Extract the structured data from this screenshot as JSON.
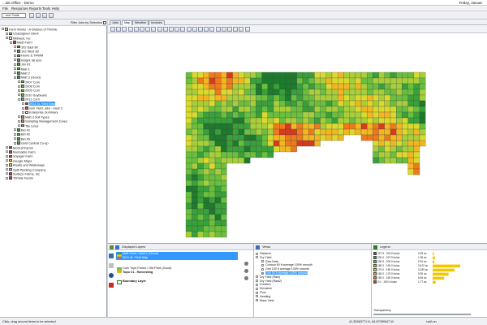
{
  "window": {
    "title": "...Ids Office - Demo",
    "right_info": "Friday, Januar"
  },
  "menu": [
    "File",
    "Resources",
    "Reports",
    "Tools",
    "Help"
  ],
  "toolbar": {
    "combo_value": "...mer Tools"
  },
  "left_panel": {
    "filter_label": "Filter Jobs by Selection",
    "tree": [
      {
        "label": "Farm Works - A Division of Trimble",
        "indent": 0,
        "icon": "folder-icon",
        "color": "#e8c35a"
      },
      {
        "label": "Unassigned Client",
        "indent": 1,
        "icon": "folder-icon",
        "color": "#e8c35a"
      },
      {
        "label": "Midwest, Inc",
        "indent": 1,
        "icon": "client-icon",
        "color": "#ffffff"
      },
      {
        "label": "Mast Farm",
        "indent": 2,
        "icon": "farm-icon",
        "color": "#b33b2e"
      },
      {
        "label": "102 East 80",
        "indent": 3,
        "icon": "field-icon",
        "color": "#4f9a3d"
      },
      {
        "label": "102 West 80",
        "indent": 3,
        "icon": "field-icon",
        "color": "#4f9a3d"
      },
      {
        "label": "Home & THWM",
        "indent": 3,
        "icon": "field-icon",
        "color": "#4f9a3d"
      },
      {
        "label": "Insight 38 acre",
        "indent": 3,
        "icon": "field-icon",
        "color": "#4f9a3d"
      },
      {
        "label": "Jim #1",
        "indent": 3,
        "icon": "field-icon",
        "color": "#4f9a3d"
      },
      {
        "label": "Matt 1",
        "indent": 3,
        "icon": "field-icon",
        "color": "#4f9a3d"
      },
      {
        "label": "Matt 2",
        "indent": 3,
        "icon": "field-icon",
        "color": "#4f9a3d"
      },
      {
        "label": "Matt 3 (Good)",
        "indent": 3,
        "icon": "field-icon",
        "color": "#4f9a3d"
      },
      {
        "label": "2007 Corn",
        "indent": 4,
        "icon": "season-icon",
        "color": "#7cb342"
      },
      {
        "label": "2008 Corn",
        "indent": 4,
        "icon": "season-icon",
        "color": "#7cb342"
      },
      {
        "label": "2009 Corn",
        "indent": 4,
        "icon": "season-icon",
        "color": "#7cb342"
      },
      {
        "label": "2010 Soybeans",
        "indent": 4,
        "icon": "season-icon",
        "color": "#7cb342"
      },
      {
        "label": "2011 Corn",
        "indent": 4,
        "icon": "season-icon",
        "color": "#7cb342"
      },
      {
        "label": "2011 AL Yield Map",
        "indent": 5,
        "icon": "map-icon",
        "color": "#d84a3a"
      },
      {
        "label": "ssm Yield, a&b - mast 3",
        "indent": 5,
        "icon": "map-icon",
        "color": "#d84a3a"
      },
      {
        "label": "Enterprise Summary",
        "indent": 5,
        "icon": "report-icon",
        "color": "#f2f2f2"
      },
      {
        "label": "Matt 3 Soil Types",
        "indent": 4,
        "icon": "layer-icon",
        "color": "#c08a3e"
      },
      {
        "label": "Sampling Management Zones",
        "indent": 4,
        "icon": "layer-icon",
        "color": "#c08a3e"
      },
      {
        "label": "Tile Lines",
        "indent": 4,
        "icon": "layer-icon",
        "color": "#c08a3e"
      },
      {
        "label": "Bin #1",
        "indent": 3,
        "icon": "field-icon",
        "color": "#4f9a3d"
      },
      {
        "label": "Bin #2",
        "indent": 3,
        "icon": "field-icon",
        "color": "#4f9a3d"
      },
      {
        "label": "Bin #3",
        "indent": 3,
        "icon": "field-icon",
        "color": "#4f9a3d"
      },
      {
        "label": "Gold Central Co-op",
        "indent": 3,
        "icon": "field-icon",
        "color": "#4f9a3d"
      },
      {
        "label": "McGraf Farms",
        "indent": 1,
        "icon": "farm-icon",
        "color": "#b33b2e"
      },
      {
        "label": "Normalize Farm",
        "indent": 1,
        "icon": "farm-icon",
        "color": "#b33b2e"
      },
      {
        "label": "Voyager Farm",
        "indent": 1,
        "icon": "farm-icon",
        "color": "#b33b2e"
      },
      {
        "label": "Google Maps",
        "indent": 1,
        "icon": "folder-icon",
        "color": "#e8c35a"
      },
      {
        "label": "Roads and Waterways",
        "indent": 1,
        "icon": "folder-icon",
        "color": "#e8c35a"
      },
      {
        "label": "Split Planting Company",
        "indent": 1,
        "icon": "folder-icon",
        "color": "#e8c35a"
      },
      {
        "label": "Surface Farms, Inc",
        "indent": 1,
        "icon": "farm-icon",
        "color": "#b33b2e"
      },
      {
        "label": "Trimble Farms",
        "indent": 1,
        "icon": "farm-icon",
        "color": "#b33b2e"
      }
    ],
    "selected_index": 17
  },
  "tabs": [
    "Jobs",
    "Map",
    "Weather",
    "Invoices"
  ],
  "active_tab": "Map",
  "layers_panel": {
    "title": "Displayed Layers",
    "items": [
      {
        "line1": "Matt Farm / Matt 1 (Good)",
        "line2": "2011 AL Yield Map",
        "selected": true
      },
      {
        "line1": "Corn Tops Farms / Old Field (Good)",
        "line2": "Topo #1 - Harvesting",
        "selected": false
      },
      {
        "line1": "Boundary Layer",
        "line2": "",
        "selected": false
      }
    ]
  },
  "views_panel": {
    "title": "Views",
    "items": [
      {
        "label": "Distance",
        "indent": 0
      },
      {
        "label": "Dry Yield",
        "indent": 0
      },
      {
        "label": "Raw Data",
        "indent": 1
      },
      {
        "label": "Contour 60 ft average 100% smooth",
        "indent": 1
      },
      {
        "label": "Grid 100 ft average 100% smooth",
        "indent": 1
      },
      {
        "label": "Grid 50 ft average 100% smooth",
        "indent": 1,
        "selected": true
      },
      {
        "label": "Dry Yield (Raw)",
        "indent": 0
      },
      {
        "label": "Dry Yield (Raw2)",
        "indent": 0
      },
      {
        "label": "Duration",
        "indent": 0
      },
      {
        "label": "Elevation",
        "indent": 0
      },
      {
        "label": "Flow",
        "indent": 0
      },
      {
        "label": "Heading",
        "indent": 0
      },
      {
        "label": "Mass Yield",
        "indent": 0
      }
    ]
  },
  "legend": {
    "title": "Legend",
    "transparency_label": "Transparency",
    "items": [
      {
        "range": "227.9 - 313.0 bu/ac",
        "count": "0.25 ac",
        "color": "#1e7a2c"
      },
      {
        "range": "200.0 - 227.9 bu/ac",
        "count": "1.06 ac",
        "color": "#39a03a"
      },
      {
        "range": "190.0 - 200.0 bu/ac",
        "count": "0.91 ac",
        "color": "#6abf3e"
      },
      {
        "range": "180.0 - 190.0 bu/ac",
        "count": "16.22 ac",
        "color": "#a8cf3a"
      },
      {
        "range": "170.0 - 180.0 bu/ac",
        "count": "12.89 ac",
        "color": "#d9d92e"
      },
      {
        "range": "160.0 - 170.0 bu/ac",
        "count": "9.30 ac",
        "color": "#f2b622"
      },
      {
        "range": "150.0 - 160.0 bu/ac",
        "count": "6.84 ac",
        "color": "#ee7a1c"
      },
      {
        "range": "0.0 - 150.0 bu/ac",
        "count": "1.77 ac",
        "color": "#d83a1e"
      }
    ],
    "hist": [
      0.04,
      0.08,
      0.06,
      1.0,
      0.8,
      0.58,
      0.42,
      0.11
    ]
  },
  "status": {
    "left": "Click, drag around items to be selected",
    "coords": "41.35363771 N, 84.87059547 W",
    "extra": "Lat/Lon"
  },
  "colors": {
    "map_scale": [
      "#1e7a2c",
      "#39a03a",
      "#6abf3e",
      "#a8cf3a",
      "#d9d92e",
      "#f2b622",
      "#ee7a1c",
      "#d83a1e"
    ]
  }
}
